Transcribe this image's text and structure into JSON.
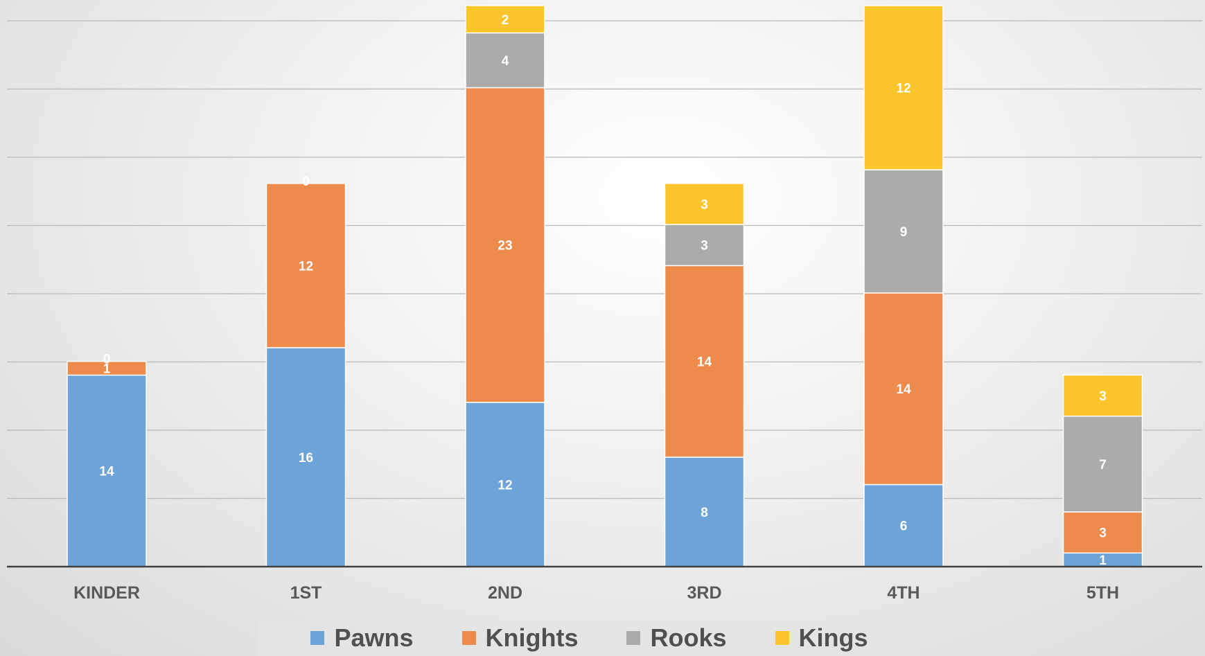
{
  "chart_data": {
    "type": "bar",
    "stacked": true,
    "title": "",
    "xlabel": "",
    "ylabel": "",
    "ylim": [
      0,
      41
    ],
    "grid": true,
    "legend_position": "bottom",
    "categories": [
      "KINDER",
      "1ST",
      "2ND",
      "3RD",
      "4TH",
      "5TH"
    ],
    "series": [
      {
        "name": "Pawns",
        "color": "#6ea3d8",
        "values": [
          14,
          16,
          12,
          8,
          6,
          1
        ]
      },
      {
        "name": "Knights",
        "color": "#ec8b4c",
        "values": [
          1,
          12,
          23,
          14,
          14,
          3
        ]
      },
      {
        "name": "Rooks",
        "color": "#ababab",
        "values": [
          0,
          0,
          4,
          3,
          9,
          7
        ]
      },
      {
        "name": "Kings",
        "color": "#fbc52b",
        "values": [
          0,
          0,
          2,
          3,
          12,
          3
        ]
      }
    ],
    "data_labels": [
      [
        "14",
        "1",
        "0",
        ""
      ],
      [
        "16",
        "12",
        "0",
        ""
      ],
      [
        "12",
        "23",
        "4",
        "2"
      ],
      [
        "8",
        "14",
        "3",
        "3"
      ],
      [
        "6",
        "14",
        "9",
        "12"
      ],
      [
        "1",
        "3",
        "7",
        "3"
      ]
    ]
  }
}
